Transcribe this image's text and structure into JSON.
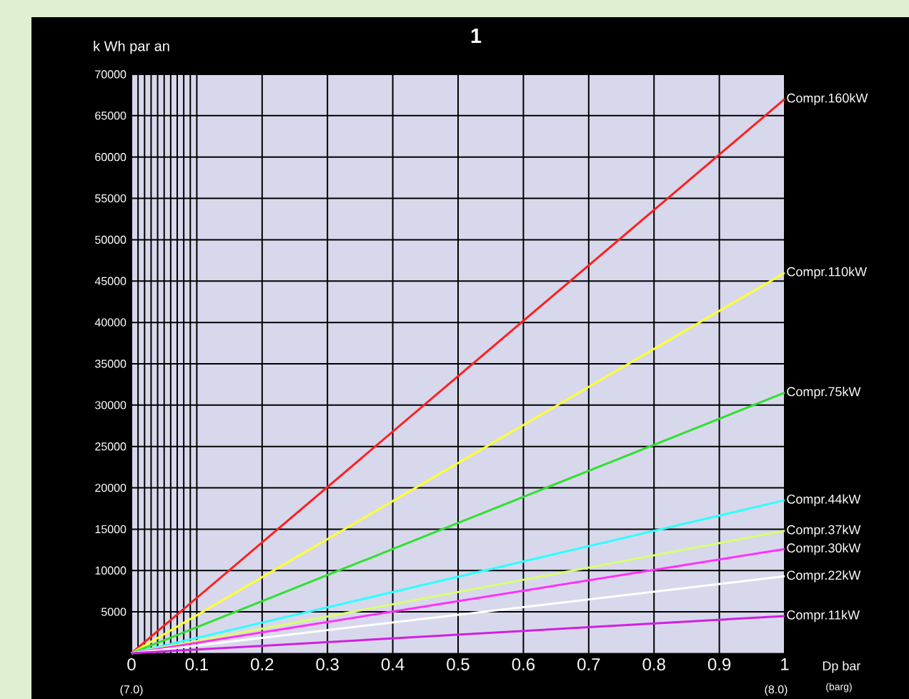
{
  "chart_data": {
    "type": "line",
    "title": "1",
    "ylabel": "k Wh par an",
    "xlabel": "Dp bar",
    "annotations": [
      "(7.0)",
      "(8.0)",
      "(barg)"
    ],
    "x": [
      0,
      1
    ],
    "xlim": [
      0,
      1
    ],
    "ylim": [
      0,
      70000
    ],
    "xticks": [
      0,
      {
        "value": 0.01,
        "label": null
      },
      {
        "value": 0.02,
        "label": null
      },
      {
        "value": 0.03,
        "label": null
      },
      {
        "value": 0.04,
        "label": null
      },
      {
        "value": 0.05,
        "label": null
      },
      {
        "value": 0.06,
        "label": null
      },
      {
        "value": 0.07,
        "label": null
      },
      {
        "value": 0.08,
        "label": null
      },
      {
        "value": 0.09,
        "label": null
      },
      0.1,
      0.2,
      0.3,
      0.4,
      0.5,
      0.6,
      0.7,
      0.8,
      0.9,
      1
    ],
    "yticks": [
      5000,
      10000,
      15000,
      20000,
      25000,
      30000,
      35000,
      40000,
      45000,
      50000,
      55000,
      60000,
      65000,
      70000
    ],
    "grid": true,
    "legend": false,
    "marker": "none",
    "line_style": "solid",
    "series": [
      {
        "name": "Compr.160kW",
        "color": "#ff2020",
        "values": [
          0,
          67000
        ]
      },
      {
        "name": "Compr.110kW",
        "color": "#ffff30",
        "values": [
          0,
          46000
        ]
      },
      {
        "name": "Compr.75kW",
        "color": "#30e030",
        "values": [
          0,
          31500
        ]
      },
      {
        "name": "Compr.44kW",
        "color": "#30ffff",
        "values": [
          0,
          18500
        ]
      },
      {
        "name": "Compr.37kW",
        "color": "#d8ff70",
        "values": [
          0,
          14800
        ]
      },
      {
        "name": "Compr.30kW",
        "color": "#ff30ff",
        "values": [
          0,
          12600
        ]
      },
      {
        "name": "Compr.22kW",
        "color": "#ffffff",
        "values": [
          0,
          9300
        ]
      },
      {
        "name": "Compr.11kW",
        "color": "#d020e0",
        "values": [
          0,
          4500
        ]
      }
    ]
  }
}
